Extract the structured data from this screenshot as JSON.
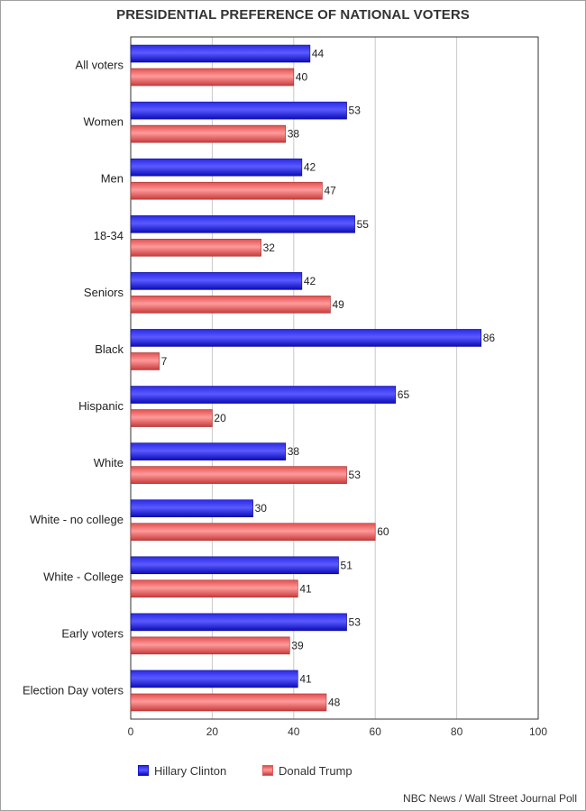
{
  "chart_data": {
    "type": "bar",
    "orientation": "horizontal",
    "title": "PRESIDENTIAL PREFERENCE OF NATIONAL VOTERS",
    "categories": [
      "All voters",
      "Women",
      "Men",
      "18-34",
      "Seniors",
      "Black",
      "Hispanic",
      "White",
      "White - no college",
      "White - College",
      "Early voters",
      "Election Day voters"
    ],
    "series": [
      {
        "name": "Hillary Clinton",
        "color": "#1414d8",
        "values": [
          44,
          53,
          42,
          55,
          42,
          86,
          65,
          38,
          30,
          51,
          53,
          41
        ]
      },
      {
        "name": "Donald Trump",
        "color": "#e85a5a",
        "values": [
          40,
          38,
          47,
          32,
          49,
          7,
          20,
          53,
          60,
          41,
          39,
          48
        ]
      }
    ],
    "xlim": [
      0,
      100
    ],
    "xticks": [
      0,
      20,
      40,
      60,
      80,
      100
    ],
    "xlabel": "",
    "ylabel": "",
    "grid": "vertical",
    "legend": "bottom",
    "source": "NBC News / Wall Street Journal Poll"
  }
}
